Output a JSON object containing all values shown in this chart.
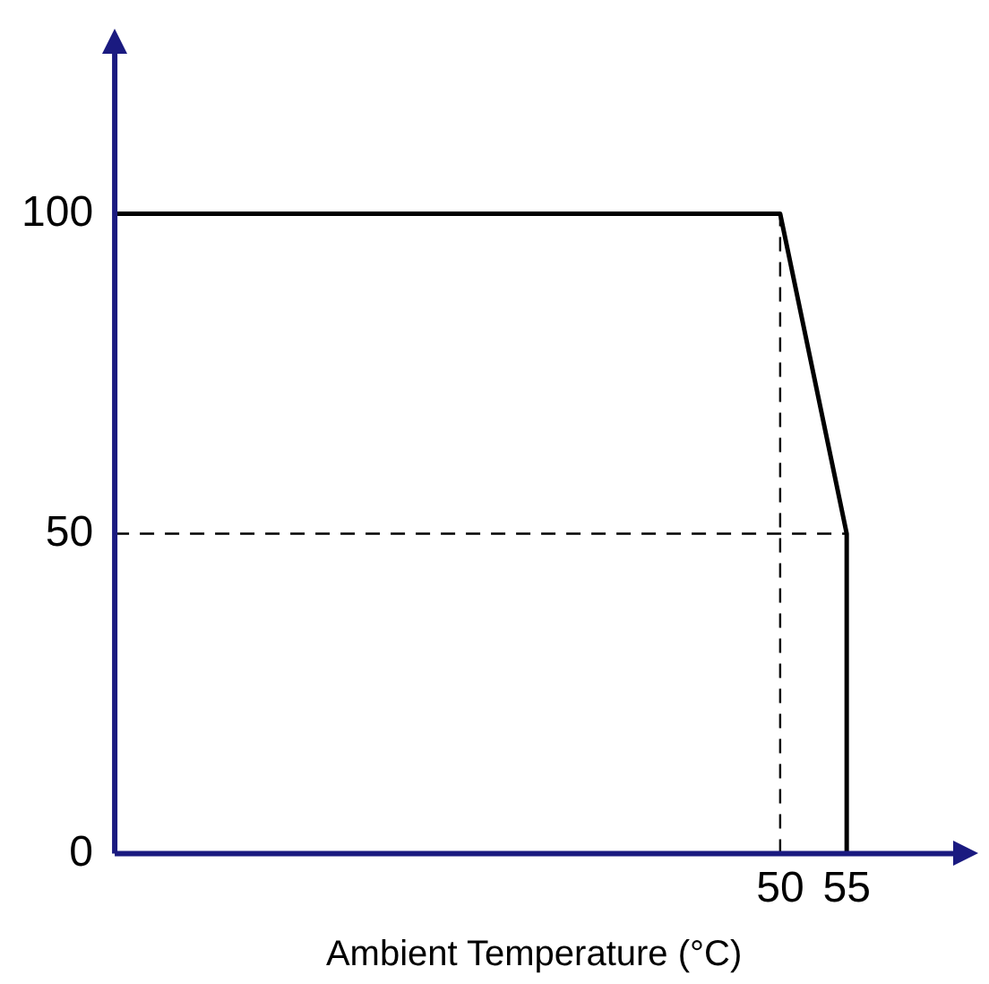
{
  "chart_data": {
    "type": "line",
    "xlabel": "Ambient Temperature (°C)",
    "xlim": [
      0,
      63
    ],
    "ylim": [
      0,
      125
    ],
    "xticks": [
      50,
      55
    ],
    "yticks": [
      0,
      50,
      100
    ],
    "grid": false,
    "legend": false,
    "marker": "none",
    "series": [
      {
        "color": "#000000",
        "x": [
          0,
          50,
          55,
          55
        ],
        "values": [
          100,
          100,
          50,
          0
        ],
        "line_style": "solid"
      },
      {
        "color": "#000000",
        "x": [
          50,
          50
        ],
        "values": [
          0,
          100
        ],
        "line_style": "dashed"
      },
      {
        "color": "#000000",
        "x": [
          0,
          55
        ],
        "values": [
          50,
          50
        ],
        "line_style": "dashed"
      }
    ]
  }
}
